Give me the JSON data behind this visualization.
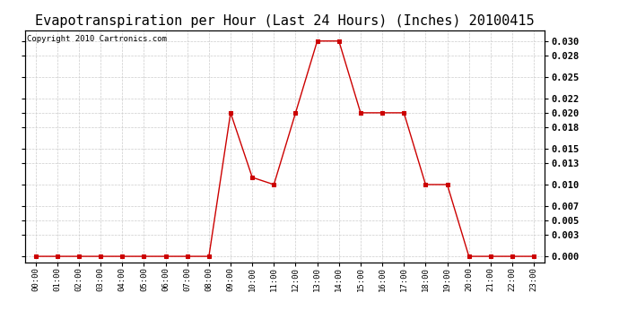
{
  "title": "Evapotranspiration per Hour (Last 24 Hours) (Inches) 20100415",
  "copyright": "Copyright 2010 Cartronics.com",
  "hours": [
    "00:00",
    "01:00",
    "02:00",
    "03:00",
    "04:00",
    "05:00",
    "06:00",
    "07:00",
    "08:00",
    "09:00",
    "10:00",
    "11:00",
    "12:00",
    "13:00",
    "14:00",
    "15:00",
    "16:00",
    "17:00",
    "18:00",
    "19:00",
    "20:00",
    "21:00",
    "22:00",
    "23:00"
  ],
  "values": [
    0.0,
    0.0,
    0.0,
    0.0,
    0.0,
    0.0,
    0.0,
    0.0,
    0.0,
    0.02,
    0.011,
    0.01,
    0.02,
    0.03,
    0.03,
    0.02,
    0.02,
    0.02,
    0.01,
    0.01,
    0.0,
    0.0,
    0.0,
    0.0
  ],
  "line_color": "#cc0000",
  "marker": "s",
  "marker_size": 2.5,
  "marker_color": "#cc0000",
  "bg_color": "#ffffff",
  "plot_bg_color": "#ffffff",
  "grid_color": "#cccccc",
  "yticks": [
    0.0,
    0.003,
    0.005,
    0.007,
    0.01,
    0.013,
    0.015,
    0.018,
    0.02,
    0.022,
    0.025,
    0.028,
    0.03
  ],
  "ylim": [
    -0.0008,
    0.0315
  ],
  "title_fontsize": 11,
  "copyright_fontsize": 6.5,
  "xtick_fontsize": 6.5,
  "ytick_fontsize": 7.5
}
